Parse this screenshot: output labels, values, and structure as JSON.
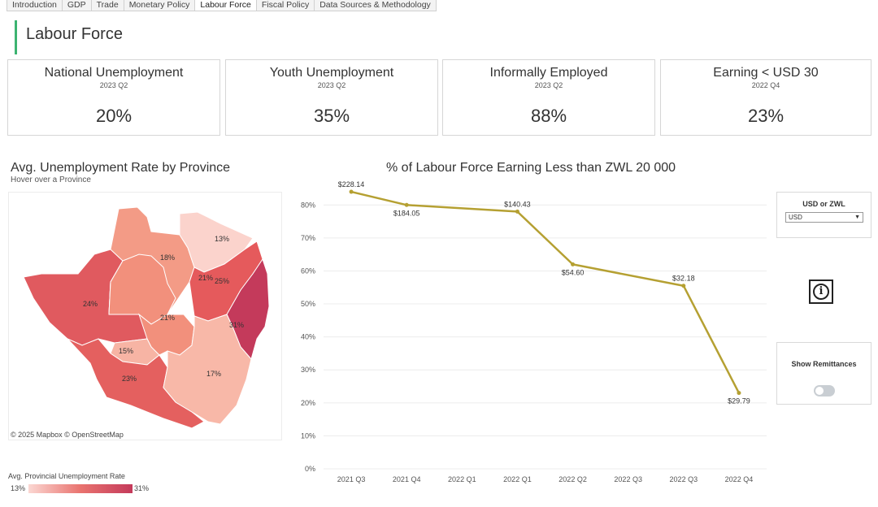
{
  "tabs": [
    {
      "label": "Introduction",
      "active": false
    },
    {
      "label": "GDP",
      "active": false
    },
    {
      "label": "Trade",
      "active": false
    },
    {
      "label": "Monetary Policy",
      "active": false
    },
    {
      "label": "Labour Force",
      "active": true
    },
    {
      "label": "Fiscal Policy",
      "active": false
    },
    {
      "label": "Data Sources & Methodology",
      "active": false
    }
  ],
  "page": {
    "title": "Labour Force",
    "accent_color": "#3cb371"
  },
  "kpis": [
    {
      "label": "National Unemployment",
      "period": "2023 Q2",
      "value": "20%"
    },
    {
      "label": "Youth Unemployment",
      "period": "2023 Q2",
      "value": "35%"
    },
    {
      "label": "Informally Employed",
      "period": "2023 Q2",
      "value": "88%"
    },
    {
      "label": "Earning < USD 30",
      "period": "2022 Q4",
      "value": "23%"
    }
  ],
  "map": {
    "title": "Avg. Unemployment Rate by Province",
    "subtitle": "Hover over a Province",
    "credit": "© 2025 Mapbox  © OpenStreetMap",
    "legend_title": "Avg. Provincial Unemployment Rate",
    "legend_min": "13%",
    "legend_max": "31%",
    "provinces": [
      {
        "label": "24%",
        "color": "#e05a5f"
      },
      {
        "label": "18%",
        "color": "#f39b86"
      },
      {
        "label": "13%",
        "color": "#fbd3cc"
      },
      {
        "label": "21%",
        "color": "#f2907c"
      },
      {
        "label": "21%",
        "color": "#f2907c"
      },
      {
        "label": "25%",
        "color": "#e55a5c"
      },
      {
        "label": "31%",
        "color": "#c43a5b"
      },
      {
        "label": "15%",
        "color": "#f7b4a4"
      },
      {
        "label": "23%",
        "color": "#e4605f"
      },
      {
        "label": "17%",
        "color": "#f8b8a8"
      }
    ]
  },
  "chart_data": {
    "type": "line",
    "title": "% of Labour Force Earning Less than ZWL 20 000",
    "categories": [
      "2021 Q3",
      "2021 Q4",
      "2022 Q1",
      "2022 Q1",
      "2022 Q2",
      "2022 Q3",
      "2022 Q3",
      "2022 Q4"
    ],
    "points": [
      {
        "x": "2021 Q3",
        "y": 84,
        "label": "$228.14",
        "label_pos": "above"
      },
      {
        "x": "2021 Q4",
        "y": 80,
        "label": "$184.05",
        "label_pos": "below"
      },
      {
        "x": "2022 Q1",
        "y": 78,
        "label": "$140.43",
        "label_pos": "above"
      },
      {
        "x": "2022 Q2",
        "y": 62,
        "label": "$54.60",
        "label_pos": "below"
      },
      {
        "x": "2022 Q3",
        "y": 55.5,
        "label": "$32.18",
        "label_pos": "above"
      },
      {
        "x": "2022 Q4",
        "y": 23,
        "label": "$29.79",
        "label_pos": "below"
      }
    ],
    "point_category_index": [
      0,
      1,
      3,
      4,
      6,
      7
    ],
    "yticks": [
      "0%",
      "10%",
      "20%",
      "30%",
      "40%",
      "50%",
      "60%",
      "70%",
      "80%"
    ],
    "ylim": [
      0,
      85
    ],
    "grid": true,
    "line_color": "#b5a032"
  },
  "controls": {
    "currency_label": "USD or ZWL",
    "currency_value": "USD",
    "info_glyph": "i",
    "remittances_label": "Show Remittances",
    "remittances_on": false
  }
}
